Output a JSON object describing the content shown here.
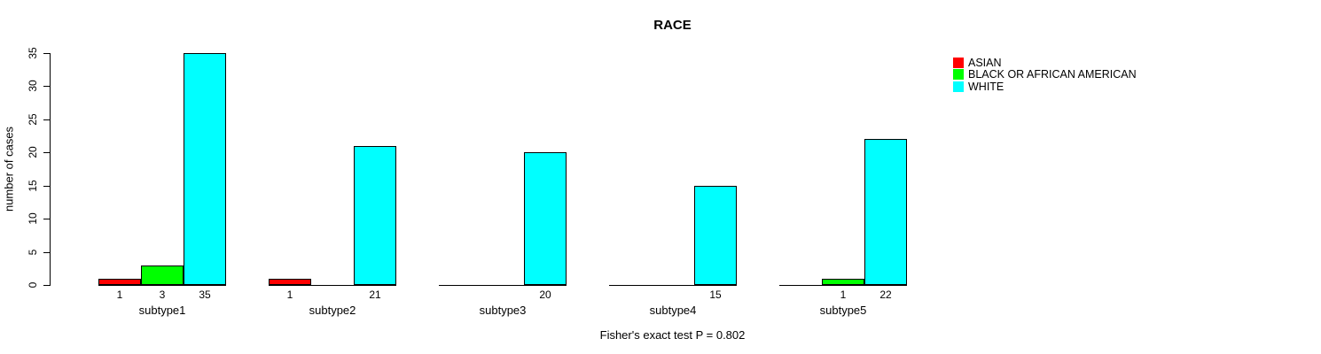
{
  "chart_data": {
    "type": "bar",
    "title": "RACE",
    "xlabel": "",
    "ylabel": "number of cases",
    "annotation": "Fisher's exact test P = 0.802",
    "categories": [
      "subtype1",
      "subtype2",
      "subtype3",
      "subtype4",
      "subtype5"
    ],
    "series": [
      {
        "name": "ASIAN",
        "color": "#ff0000",
        "values": [
          1,
          1,
          0,
          0,
          0
        ]
      },
      {
        "name": "BLACK OR AFRICAN AMERICAN",
        "color": "#00ff00",
        "values": [
          3,
          0,
          0,
          0,
          1
        ]
      },
      {
        "name": "WHITE",
        "color": "#00ffff",
        "values": [
          35,
          21,
          20,
          15,
          22
        ]
      }
    ],
    "yticks": [
      0,
      5,
      10,
      15,
      20,
      25,
      30,
      35
    ],
    "ylim": [
      0,
      35
    ],
    "grid": false,
    "legend_position": "right-outside",
    "show_value_labels_nonzero_only": true
  }
}
